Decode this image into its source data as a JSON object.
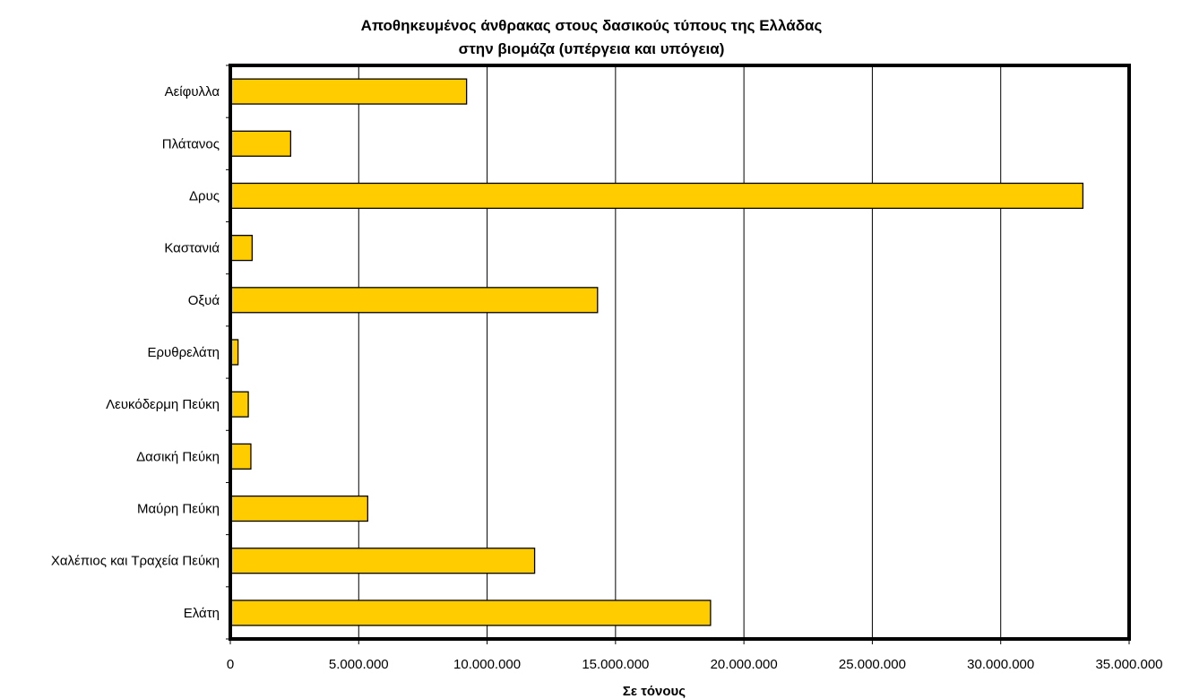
{
  "chart_data": {
    "type": "bar",
    "orientation": "horizontal",
    "title": [
      "Αποθηκευμένος άνθρακας στους δασικούς τύπους της Ελλάδας",
      "στην βιομάζα (υπέργεια και υπόγεια)"
    ],
    "xlabel": "Σε τόνους",
    "ylabel": "",
    "categories": [
      "Αείφυλλα",
      "Πλάτανος",
      "Δρυς",
      "Καστανιά",
      "Οξυά",
      "Ερυθρελάτη",
      "Λευκόδερμη Πεύκη",
      "Δασική Πεύκη",
      "Μαύρη Πεύκη",
      "Χαλέπιος και Τραχεία Πεύκη",
      "Ελάτη"
    ],
    "values": [
      9200000,
      2350000,
      33200000,
      850000,
      14300000,
      300000,
      700000,
      800000,
      5350000,
      11850000,
      18700000
    ],
    "xlim": [
      0,
      35000000
    ],
    "ticks": [
      0,
      5000000,
      10000000,
      15000000,
      20000000,
      25000000,
      30000000,
      35000000
    ],
    "tick_labels": [
      "0",
      "5.000.000",
      "10.000.000",
      "15.000.000",
      "20.000.000",
      "25.000.000",
      "30.000.000",
      "35.000.000"
    ],
    "grid": "vertical",
    "legend": "none",
    "bar_color": "#FFCC00",
    "bar_edge_color": "#000000"
  }
}
